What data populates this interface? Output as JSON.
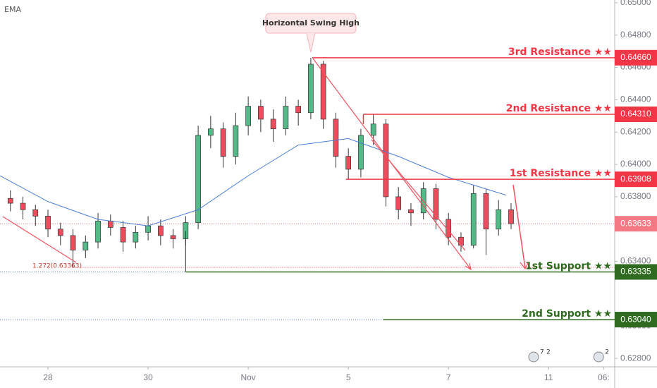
{
  "chart_data": {
    "type": "candlestick",
    "indicator": "EMA",
    "xlim": [
      -0.958,
      11.32
    ],
    "ylim": [
      0.62748,
      0.65017
    ],
    "xticks": [
      {
        "value": 0,
        "label": "28"
      },
      {
        "value": 2,
        "label": "30"
      },
      {
        "value": 4,
        "label": "Nov"
      },
      {
        "value": 6,
        "label": "5"
      },
      {
        "value": 8,
        "label": "7"
      },
      {
        "value": 10,
        "label": "11"
      },
      {
        "value": 11.1,
        "label": "06:"
      }
    ],
    "yticks": [
      {
        "value": 0.65,
        "label": "0.65000"
      },
      {
        "value": 0.648,
        "label": "0.64800"
      },
      {
        "value": 0.646,
        "label": "0.64600"
      },
      {
        "value": 0.644,
        "label": "0.64400"
      },
      {
        "value": 0.642,
        "label": "0.64200"
      },
      {
        "value": 0.64,
        "label": "0.64000"
      },
      {
        "value": 0.638,
        "label": "0.63800"
      },
      {
        "value": 0.634,
        "label": "0.63400"
      },
      {
        "value": 0.63,
        "label": "0.63000"
      },
      {
        "value": 0.628,
        "label": "0.62800"
      }
    ],
    "up_color": "#53b987",
    "down_color": "#eb4d5c",
    "candles": {
      "x": [
        -0.75,
        -0.5,
        -0.25,
        0,
        0.25,
        0.5,
        0.75,
        1,
        1.25,
        1.5,
        1.75,
        2,
        2.25,
        2.5,
        2.75,
        3,
        3.25,
        3.5,
        3.75,
        4,
        4.25,
        4.5,
        4.75,
        5,
        5.25,
        5.5,
        5.75,
        6,
        6.25,
        6.5,
        6.75,
        7,
        7.25,
        7.5,
        7.75,
        8,
        8.25,
        8.5,
        8.75,
        9,
        9.25
      ],
      "open": [
        0.6379,
        0.6376,
        0.6372,
        0.6368,
        0.636,
        0.6356,
        0.6347,
        0.6352,
        0.6365,
        0.6361,
        0.6352,
        0.6358,
        0.6362,
        0.6356,
        0.6354,
        0.6364,
        0.6418,
        0.6422,
        0.6405,
        0.6424,
        0.6436,
        0.6428,
        0.6422,
        0.6436,
        0.6432,
        0.6462,
        0.6428,
        0.6405,
        0.6397,
        0.6418,
        0.6425,
        0.638,
        0.6372,
        0.637,
        0.6385,
        0.6366,
        0.6355,
        0.635,
        0.6382,
        0.636,
        0.6372
      ],
      "high": [
        0.6384,
        0.638,
        0.6375,
        0.6372,
        0.6364,
        0.636,
        0.6356,
        0.637,
        0.6369,
        0.6365,
        0.6362,
        0.6368,
        0.6366,
        0.636,
        0.6368,
        0.6424,
        0.643,
        0.6426,
        0.6432,
        0.6442,
        0.644,
        0.6434,
        0.6442,
        0.644,
        0.6466,
        0.6464,
        0.6432,
        0.641,
        0.6422,
        0.6431,
        0.6428,
        0.6386,
        0.6376,
        0.6389,
        0.6388,
        0.637,
        0.6358,
        0.6387,
        0.6385,
        0.6378,
        0.6376
      ],
      "low": [
        0.6371,
        0.6366,
        0.6362,
        0.6355,
        0.635,
        0.6336,
        0.6342,
        0.6348,
        0.6356,
        0.6346,
        0.6348,
        0.6353,
        0.635,
        0.6348,
        0.635,
        0.636,
        0.641,
        0.6398,
        0.64,
        0.6418,
        0.642,
        0.6414,
        0.6418,
        0.6424,
        0.6428,
        0.6422,
        0.6398,
        0.6391,
        0.6392,
        0.6412,
        0.6374,
        0.6366,
        0.6362,
        0.6366,
        0.636,
        0.635,
        0.6346,
        0.6348,
        0.6344,
        0.6356,
        0.636
      ],
      "close": [
        0.6376,
        0.6372,
        0.6368,
        0.636,
        0.6356,
        0.6347,
        0.6352,
        0.6365,
        0.6361,
        0.6352,
        0.6358,
        0.6362,
        0.6356,
        0.6354,
        0.6364,
        0.6418,
        0.6422,
        0.6405,
        0.6424,
        0.6436,
        0.6428,
        0.6422,
        0.6436,
        0.6432,
        0.6462,
        0.6428,
        0.6405,
        0.6397,
        0.6418,
        0.6425,
        0.638,
        0.6372,
        0.637,
        0.6385,
        0.6366,
        0.6355,
        0.635,
        0.6382,
        0.636,
        0.6372,
        0.63633
      ]
    },
    "ema": {
      "name": "EMA",
      "color": "#4a7fd4",
      "x": [
        -0.958,
        0,
        1,
        2,
        3,
        4,
        5,
        6,
        7,
        8,
        9.15
      ],
      "values": [
        0.6393,
        0.6377,
        0.6366,
        0.6362,
        0.6372,
        0.6393,
        0.6412,
        0.6416,
        0.6405,
        0.6392,
        0.6381
      ]
    },
    "levels": [
      {
        "name": "3rd Resistance ★★",
        "value": 0.6466,
        "value_label": "0.64660",
        "color": "#f23645",
        "from": 5.28
      },
      {
        "name": "2nd Resistance ★★",
        "value": 0.6431,
        "value_label": "0.64310",
        "color": "#f23645",
        "from": 6.3
      },
      {
        "name": "1st Resistance ★★",
        "value": 0.63908,
        "value_label": "0.63908",
        "color": "#f23645",
        "from": 5.95
      },
      {
        "name": "1st Support ★★",
        "value": 0.63335,
        "value_label": "0.63335",
        "color": "#2e6b1f",
        "from": 2.75
      },
      {
        "name": "2nd Support ★★",
        "value": 0.6304,
        "value_label": "0.63040",
        "color": "#2e6b1f",
        "from": 6.7
      }
    ],
    "current_price": {
      "value": 0.63633,
      "label": "0.63633",
      "color": "#f37a84"
    },
    "fib": {
      "label": "1.272(0.63363)",
      "value": 0.63363
    },
    "annotation": "Horizontal Swing High",
    "events": [
      {
        "x": 9.7,
        "labels": [
          "7",
          "2"
        ]
      },
      {
        "x": 11.0,
        "labels": [
          "2"
        ]
      }
    ]
  }
}
